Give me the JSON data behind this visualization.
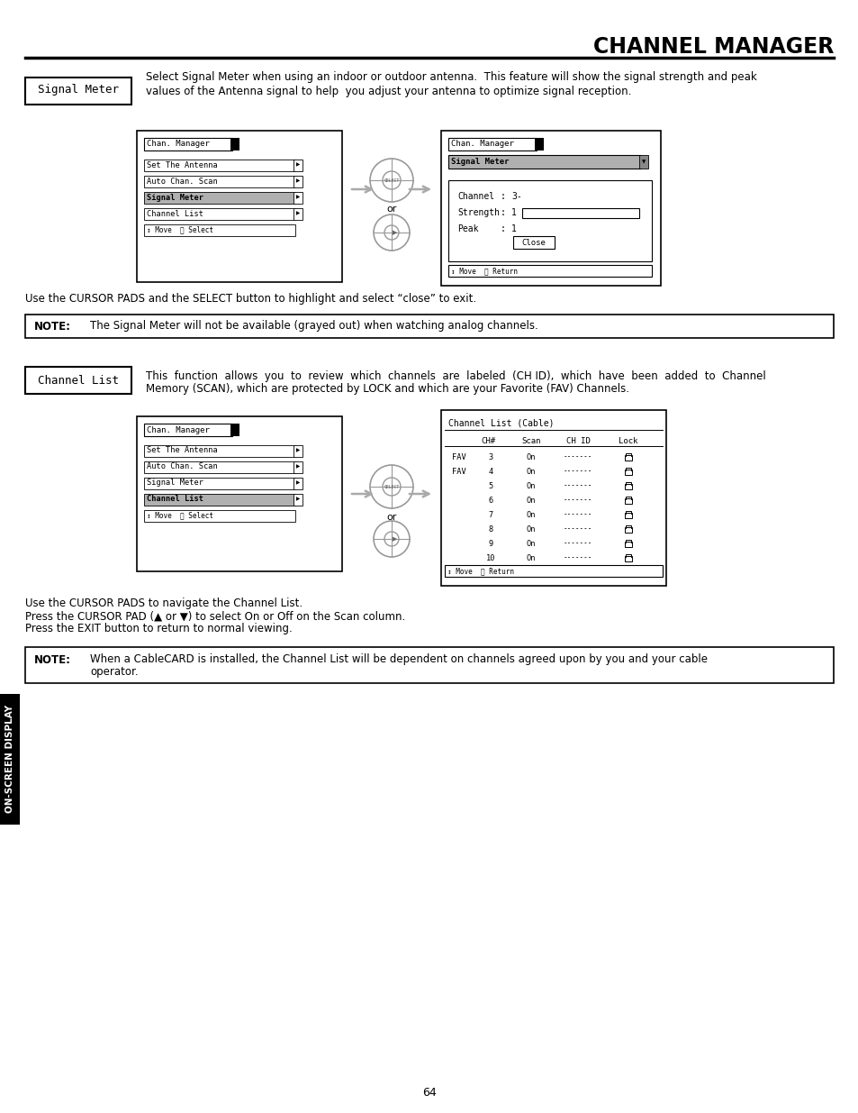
{
  "title": "CHANNEL MANAGER",
  "page_num": "64",
  "bg_color": "#ffffff",
  "text_color": "#000000",
  "section1_label": "Signal Meter",
  "section1_desc1": "Select Signal Meter when using an indoor or outdoor antenna.  This feature will show the signal strength and peak",
  "section1_desc2": "values of the Antenna signal to help  you adjust your antenna to optimize signal reception.",
  "section1_note": "The Signal Meter will not be available (grayed out) when watching analog channels.",
  "section2_label": "Channel List",
  "section2_desc1": "This  function  allows  you  to  review  which  channels  are  labeled  (CH ID),  which  have  been  added  to  Channel",
  "section2_desc2": "Memory (SCAN), which are protected by LOCK and which are your Favorite (FAV) Channels.",
  "cursor_text1": "Use the CURSOR PADS and the SELECT button to highlight and select “close” to exit.",
  "cursor_text2": "Use the CURSOR PADS to navigate the Channel List.",
  "cursor_text3": "Press the CURSOR PAD (▲ or ▼) to select On or Off on the Scan column.",
  "cursor_text4": "Press the EXIT button to return to normal viewing.",
  "note2_text1": "When a CableCARD is installed, the Channel List will be dependent on channels agreed upon by you and your cable",
  "note2_text2": "operator.",
  "sidebar_text": "ON-SCREEN DISPLAY"
}
